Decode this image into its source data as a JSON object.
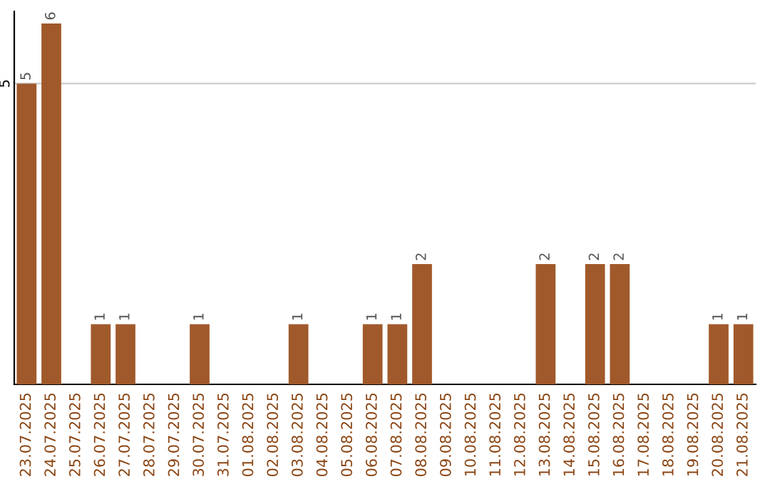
{
  "chart_data": {
    "type": "bar",
    "categories": [
      "23.07.2025",
      "24.07.2025",
      "25.07.2025",
      "26.07.2025",
      "27.07.2025",
      "28.07.2025",
      "29.07.2025",
      "30.07.2025",
      "31.07.2025",
      "01.08.2025",
      "02.08.2025",
      "03.08.2025",
      "04.08.2025",
      "05.08.2025",
      "06.08.2025",
      "07.08.2025",
      "08.08.2025",
      "09.08.2025",
      "10.08.2025",
      "11.08.2025",
      "12.08.2025",
      "13.08.2025",
      "14.08.2025",
      "15.08.2025",
      "16.08.2025",
      "17.08.2025",
      "18.08.2025",
      "19.08.2025",
      "20.08.2025",
      "21.08.2025"
    ],
    "values": [
      5,
      6,
      0,
      1,
      1,
      0,
      0,
      1,
      0,
      0,
      0,
      1,
      0,
      0,
      1,
      1,
      2,
      0,
      0,
      0,
      0,
      2,
      0,
      2,
      2,
      0,
      0,
      0,
      1,
      1
    ],
    "value_labels": [
      "5",
      "6",
      null,
      "1",
      "1",
      null,
      null,
      "1",
      null,
      null,
      null,
      "1",
      null,
      null,
      "1",
      "1",
      "2",
      null,
      null,
      null,
      null,
      "2",
      null,
      "2",
      "2",
      null,
      null,
      null,
      "1",
      "1"
    ],
    "color": "#a0592a",
    "ylim": [
      0,
      6.2
    ],
    "yticks": [
      5
    ],
    "grid": "y"
  }
}
